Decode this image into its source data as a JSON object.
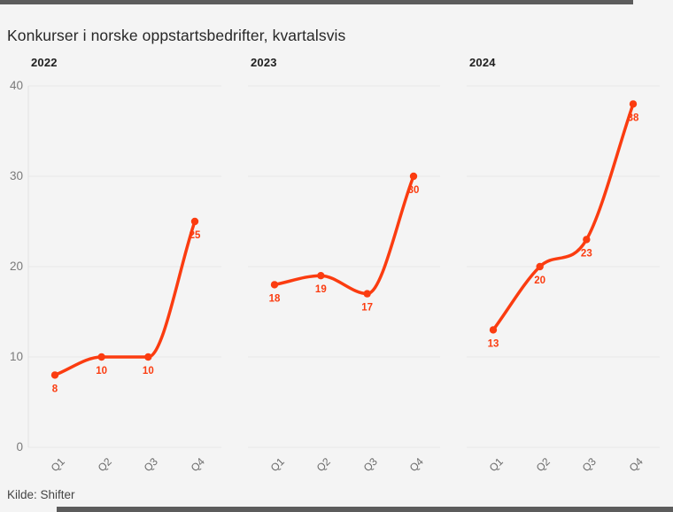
{
  "title": "Konkurser i norske oppstartsbedrifter, kvartalsvis",
  "source": "Kilde: Shifter",
  "colors": {
    "background": "#f4f4f4",
    "accent": "#fb3c10",
    "grid": "#e8e8e8",
    "axis_line": "#e2e2e2",
    "axis_text": "#7a7a7a",
    "tick_text": "#6b6b6b",
    "title_text": "#272727",
    "bar": "#5c5c5c"
  },
  "chart_data": {
    "type": "line",
    "title": "Konkurser i norske oppstartsbedrifter, kvartalsvis",
    "categories": [
      "Q1",
      "Q2",
      "Q3",
      "Q4"
    ],
    "panels": [
      {
        "year": "2022",
        "values": [
          8,
          10,
          10,
          25
        ]
      },
      {
        "year": "2023",
        "values": [
          18,
          19,
          17,
          30
        ]
      },
      {
        "year": "2024",
        "values": [
          13,
          20,
          23,
          38
        ]
      }
    ],
    "ylim": [
      0,
      40
    ],
    "yticks": [
      0,
      10,
      20,
      30,
      40
    ],
    "grid": true,
    "legend": "none",
    "point_labels": true,
    "source": "Kilde: Shifter"
  }
}
